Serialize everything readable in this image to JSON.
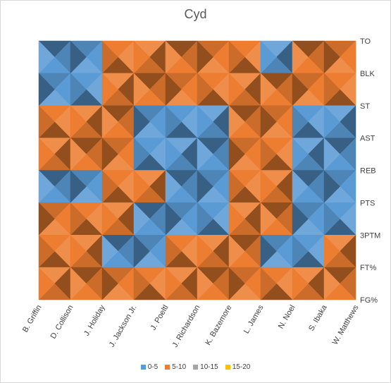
{
  "chart_data": {
    "type": "surface",
    "title": "Cyd",
    "x_categories": [
      "B. Griffin",
      "D. Collison",
      "J. Holiday",
      "J. Jackson Jr.",
      "J. Poeltl",
      "J. Richardson",
      "K. Bazemore",
      "L. James",
      "N. Noel",
      "S. Ibaka",
      "W. Matthews"
    ],
    "y_categories": [
      "TO",
      "BLK",
      "ST",
      "AST",
      "REB",
      "PTS",
      "3PTM",
      "FT%",
      "FG%"
    ],
    "z": [
      [
        2,
        2,
        2,
        6,
        6,
        4,
        6,
        4,
        2,
        6,
        6
      ],
      [
        2,
        3,
        5,
        14,
        13,
        6,
        8,
        6,
        7,
        12,
        6
      ],
      [
        2,
        6,
        5,
        3,
        2,
        6,
        6,
        7,
        3,
        3,
        3
      ],
      [
        6,
        7,
        12,
        3,
        2,
        3,
        3,
        12,
        7,
        3,
        3
      ],
      [
        6,
        2,
        6,
        8,
        5,
        1,
        3,
        8,
        3,
        3,
        3
      ],
      [
        6,
        2,
        8,
        7,
        3,
        1,
        6,
        8,
        3,
        3,
        2
      ],
      [
        8,
        8,
        7,
        3,
        2,
        6,
        6,
        8,
        3,
        3,
        6
      ],
      [
        8,
        6,
        6,
        1,
        8,
        6,
        6,
        6,
        2,
        6,
        8
      ],
      [
        6,
        6,
        6,
        8,
        6,
        6,
        6,
        6,
        6,
        6,
        6
      ]
    ],
    "bands": [
      {
        "label": "0-5",
        "color": "#5b9bd5"
      },
      {
        "label": "5-10",
        "color": "#ed7d31"
      },
      {
        "label": "10-15",
        "color": "#a5a5a5"
      },
      {
        "label": "15-20",
        "color": "#ffc000"
      }
    ],
    "legend_position": "bottom",
    "grid": false
  }
}
